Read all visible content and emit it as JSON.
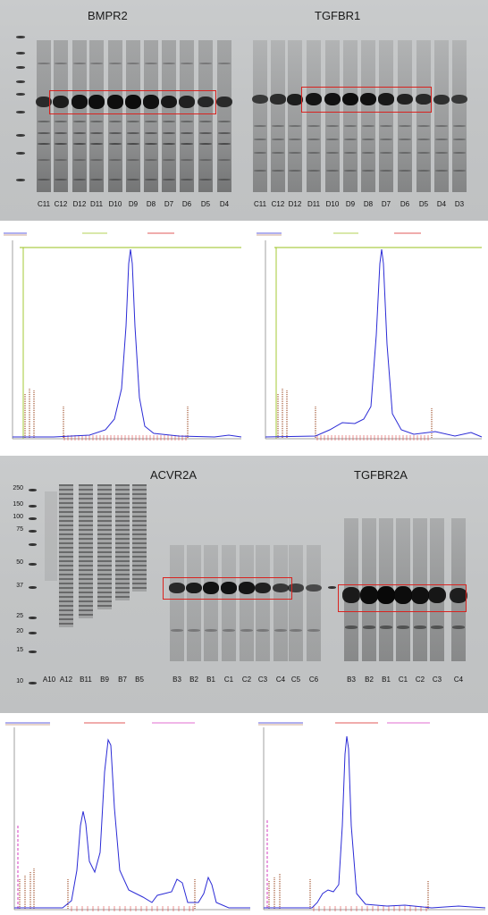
{
  "top_gel": {
    "left_title": "BMPR2",
    "right_title": "TGFBR1",
    "left_lanes": [
      "C11",
      "C12",
      "D12",
      "D11",
      "D10",
      "D9",
      "D8",
      "D7",
      "D6",
      "D5",
      "D4"
    ],
    "right_lanes": [
      "C11",
      "C12",
      "D12",
      "D11",
      "D10",
      "D9",
      "D8",
      "D7",
      "D6",
      "D5",
      "D4",
      "D3"
    ]
  },
  "bottom_gel": {
    "left_title": "ACVR2A",
    "right_title": "TGFBR2A",
    "markers": [
      "250",
      "150",
      "100",
      "75",
      "50",
      "37",
      "25",
      "20",
      "15",
      "10"
    ],
    "left_lanes": [
      "A10",
      "A12",
      "B11",
      "B9",
      "B7",
      "B5",
      "B3",
      "B2",
      "B1",
      "C1",
      "C2",
      "C3",
      "C4",
      "C5",
      "C6"
    ],
    "right_lanes": [
      "B3",
      "B2",
      "B1",
      "C1",
      "C2",
      "C3",
      "C4"
    ]
  },
  "colors": {
    "highlight_box": "#d9231f",
    "uv_trace": "#2b2bd6",
    "conductivity_trace": "#9ac21e",
    "fraction_marks": "#d62020",
    "injection_marks": "#a0522d",
    "concentration_trace": "#d63cc0"
  }
}
